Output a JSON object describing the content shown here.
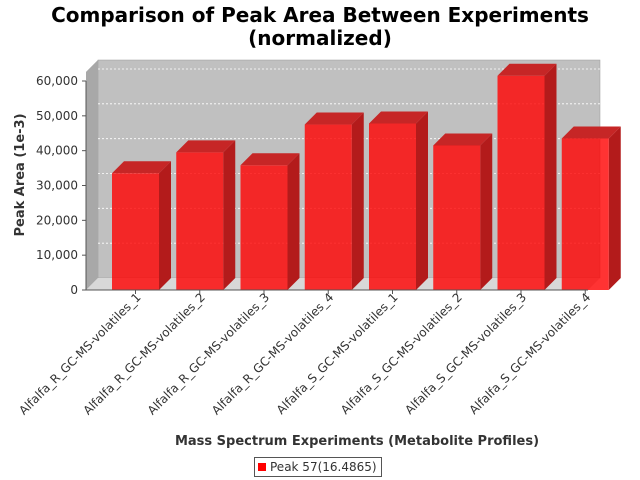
{
  "chart_data": {
    "type": "bar",
    "title_line1": "Comparison of Peak Area Between Experiments",
    "title_line2": "(normalized)",
    "xlabel": "Mass Spectrum Experiments (Metabolite Profiles)",
    "ylabel": "Peak Area (1e-3)",
    "categories": [
      "Alfalfa_R_GC-MS-volatiles_1",
      "Alfalfa_R_GC-MS-volatiles_2",
      "Alfalfa_R_GC-MS-volatiles_3",
      "Alfalfa_R_GC-MS-volatiles_4",
      "Alfalfa_S_GC-MS-volatiles_1",
      "Alfalfa_S_GC-MS-volatiles_2",
      "Alfalfa_S_GC-MS-volatiles_3",
      "Alfalfa_S_GC-MS-volatiles_4"
    ],
    "series": [
      {
        "name": "Peak 57(16.4865)",
        "color": "#ff0000",
        "values": [
          33500,
          39500,
          35800,
          47500,
          47800,
          41500,
          61500,
          43500
        ]
      }
    ],
    "ylim": [
      0,
      60000
    ],
    "yticks": [
      0,
      10000,
      20000,
      30000,
      40000,
      50000,
      60000
    ],
    "ytick_labels": [
      "0",
      "10,000",
      "20,000",
      "30,000",
      "40,000",
      "50,000",
      "60,000"
    ],
    "grid": true,
    "legend_position": "bottom"
  }
}
